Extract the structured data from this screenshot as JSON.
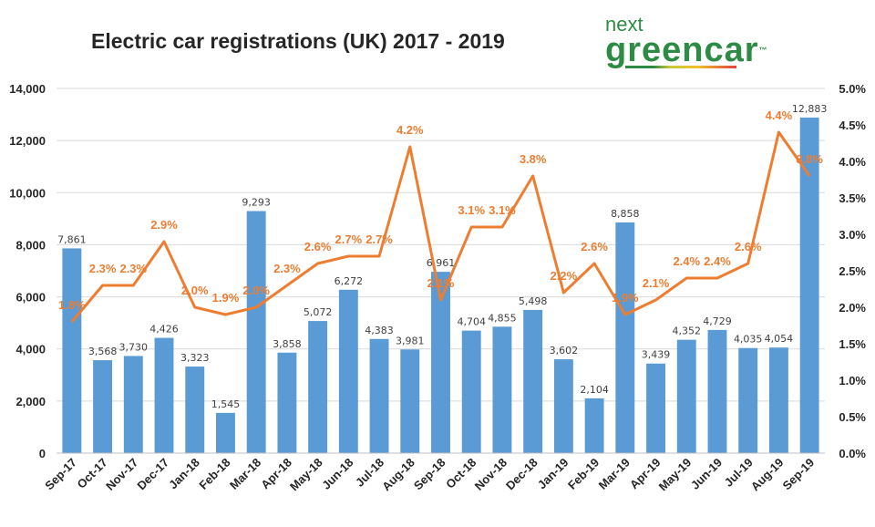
{
  "logo": {
    "line1": "next",
    "line2": "greencar",
    "tm": "™"
  },
  "chart_data": {
    "type": "bar+line",
    "title": "Electric car registrations (UK) 2017 - 2019",
    "categories": [
      "Sep-17",
      "Oct-17",
      "Nov-17",
      "Dec-17",
      "Jan-18",
      "Feb-18",
      "Mar-18",
      "Apr-18",
      "May-18",
      "Jun-18",
      "Jul-18",
      "Aug-18",
      "Sep-18",
      "Oct-18",
      "Nov-18",
      "Dec-18",
      "Jan-19",
      "Feb-19",
      "Mar-19",
      "Apr-19",
      "May-19",
      "Jun-19",
      "Jul-19",
      "Aug-19",
      "Sep-19"
    ],
    "series": [
      {
        "type": "bar",
        "axis": "left",
        "color": "#5b9bd5",
        "values": [
          7861,
          3568,
          3730,
          4426,
          3323,
          1545,
          9293,
          3858,
          5072,
          6272,
          4383,
          3981,
          6961,
          4704,
          4855,
          5498,
          3602,
          2104,
          8858,
          3439,
          4352,
          4729,
          4035,
          4054,
          12883
        ],
        "labels": [
          "7,861",
          "3,568",
          "3,730",
          "4,426",
          "3,323",
          "1,545",
          "9,293",
          "3,858",
          "5,072",
          "6,272",
          "4,383",
          "3,981",
          "6,961",
          "4,704",
          "4,855",
          "5,498",
          "3,602",
          "2,104",
          "8,858",
          "3,439",
          "4,352",
          "4,729",
          "4,035",
          "4,054",
          "12,883"
        ]
      },
      {
        "type": "line",
        "axis": "right",
        "color": "#ed7d31",
        "values": [
          1.8,
          2.3,
          2.3,
          2.9,
          2.0,
          1.9,
          2.0,
          2.3,
          2.6,
          2.7,
          2.7,
          4.2,
          2.1,
          3.1,
          3.1,
          3.8,
          2.2,
          2.6,
          1.9,
          2.1,
          2.4,
          2.4,
          2.6,
          4.4,
          3.8
        ],
        "labels": [
          "1.8%",
          "2.3%",
          "2.3%",
          "2.9%",
          "2.0%",
          "1.9%",
          "2.0%",
          "2.3%",
          "2.6%",
          "2.7%",
          "2.7%",
          "4.2%",
          "2.1%",
          "3.1%",
          "3.1%",
          "3.8%",
          "2.2%",
          "2.6%",
          "1.9%",
          "2.1%",
          "2.4%",
          "2.4%",
          "2.6%",
          "4.4%",
          "3.8%"
        ]
      }
    ],
    "ylim_left": [
      0,
      14000
    ],
    "yticks_left": [
      "0",
      "2,000",
      "4,000",
      "6,000",
      "8,000",
      "10,000",
      "12,000",
      "14,000"
    ],
    "ylim_right": [
      0,
      5
    ],
    "yticks_right": [
      "0.0%",
      "0.5%",
      "1.0%",
      "1.5%",
      "2.0%",
      "2.5%",
      "3.0%",
      "3.5%",
      "4.0%",
      "4.5%",
      "5.0%"
    ],
    "grid": true
  }
}
